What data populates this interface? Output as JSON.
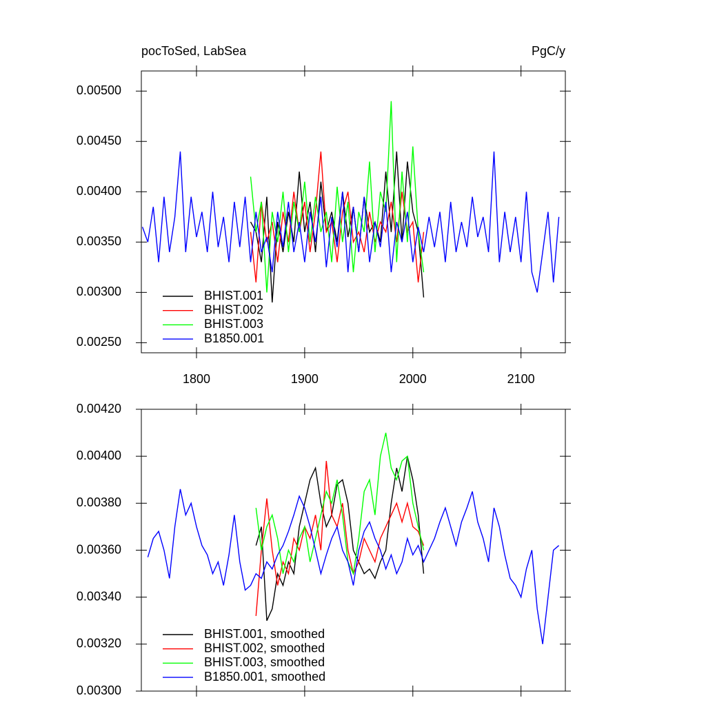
{
  "chart_data": [
    {
      "type": "line",
      "title": "pocToSed, LabSea",
      "units": "PgC/y",
      "xlim": [
        1749,
        2141
      ],
      "xticks": [
        1800,
        1900,
        2000,
        2100
      ],
      "xtick_labels": true,
      "ylim": [
        0.0024,
        0.0052
      ],
      "yticks": [
        {
          "value": 0.0025,
          "label": "0.00250"
        },
        {
          "value": 0.003,
          "label": "0.00300"
        },
        {
          "value": 0.0035,
          "label": "0.00350"
        },
        {
          "value": 0.004,
          "label": "0.00400"
        },
        {
          "value": 0.0045,
          "label": "0.00450"
        },
        {
          "value": 0.005,
          "label": "0.00500"
        }
      ],
      "legend": "lower left",
      "series": [
        {
          "name": "BHIST.001",
          "color": "#000000",
          "x": [
            1850,
            1855,
            1860,
            1865,
            1870,
            1875,
            1880,
            1885,
            1890,
            1895,
            1900,
            1905,
            1910,
            1915,
            1920,
            1925,
            1930,
            1935,
            1940,
            1945,
            1950,
            1955,
            1960,
            1965,
            1970,
            1975,
            1980,
            1985,
            1990,
            1995,
            2000,
            2005,
            2010
          ],
          "values": [
            0.0037,
            0.0036,
            0.0033,
            0.00395,
            0.0029,
            0.0037,
            0.0034,
            0.0038,
            0.0035,
            0.0042,
            0.0036,
            0.0039,
            0.0034,
            0.0041,
            0.0036,
            0.0038,
            0.0035,
            0.004,
            0.00355,
            0.00385,
            0.0034,
            0.00395,
            0.0036,
            0.0037,
            0.0035,
            0.0042,
            0.0036,
            0.0044,
            0.0035,
            0.0043,
            0.0038,
            0.0036,
            0.00295
          ]
        },
        {
          "name": "BHIST.002",
          "color": "#ff0000",
          "x": [
            1850,
            1855,
            1860,
            1865,
            1870,
            1875,
            1880,
            1885,
            1890,
            1895,
            1900,
            1905,
            1910,
            1915,
            1920,
            1925,
            1930,
            1935,
            1940,
            1945,
            1950,
            1955,
            1960,
            1965,
            1970,
            1975,
            1980,
            1985,
            1990,
            1995,
            2000,
            2005,
            2010
          ],
          "values": [
            0.0036,
            0.0031,
            0.0039,
            0.0035,
            0.0037,
            0.0033,
            0.0038,
            0.0035,
            0.004,
            0.0036,
            0.0039,
            0.0034,
            0.0038,
            0.0044,
            0.0036,
            0.0037,
            0.0033,
            0.0038,
            0.004,
            0.0035,
            0.0036,
            0.0034,
            0.0038,
            0.0035,
            0.0037,
            0.0036,
            0.0039,
            0.0035,
            0.004,
            0.0036,
            0.0037,
            0.0031,
            0.0036
          ]
        },
        {
          "name": "BHIST.003",
          "color": "#00ff00",
          "x": [
            1850,
            1855,
            1860,
            1865,
            1870,
            1875,
            1880,
            1885,
            1890,
            1895,
            1900,
            1905,
            1910,
            1915,
            1920,
            1925,
            1930,
            1935,
            1940,
            1945,
            1950,
            1955,
            1960,
            1965,
            1970,
            1975,
            1980,
            1985,
            1990,
            1995,
            2000,
            2005,
            2010
          ],
          "values": [
            0.00415,
            0.0036,
            0.0039,
            0.003,
            0.0038,
            0.0035,
            0.004,
            0.0034,
            0.0039,
            0.0036,
            0.0041,
            0.0035,
            0.00395,
            0.0036,
            0.0038,
            0.0033,
            0.00405,
            0.0035,
            0.0039,
            0.0032,
            0.0038,
            0.0036,
            0.0043,
            0.0034,
            0.004,
            0.0038,
            0.0049,
            0.0033,
            0.0042,
            0.0035,
            0.00445,
            0.0036,
            0.0032
          ]
        },
        {
          "name": "B1850.001",
          "color": "#0000ff",
          "x": [
            1750,
            1755,
            1760,
            1765,
            1770,
            1775,
            1780,
            1785,
            1790,
            1795,
            1800,
            1805,
            1810,
            1815,
            1820,
            1825,
            1830,
            1835,
            1840,
            1845,
            1850,
            1855,
            1860,
            1865,
            1870,
            1875,
            1880,
            1885,
            1890,
            1895,
            1900,
            1905,
            1910,
            1915,
            1920,
            1925,
            1930,
            1935,
            1940,
            1945,
            1950,
            1955,
            1960,
            1965,
            1970,
            1975,
            1980,
            1985,
            1990,
            1995,
            2000,
            2005,
            2010,
            2015,
            2020,
            2025,
            2030,
            2035,
            2040,
            2045,
            2050,
            2055,
            2060,
            2065,
            2070,
            2075,
            2080,
            2085,
            2090,
            2095,
            2100,
            2105,
            2110,
            2115,
            2120,
            2125,
            2130,
            2135
          ],
          "values": [
            0.00365,
            0.0035,
            0.00385,
            0.0033,
            0.00395,
            0.0034,
            0.00375,
            0.0044,
            0.0034,
            0.00395,
            0.00355,
            0.0038,
            0.0034,
            0.004,
            0.00345,
            0.00375,
            0.0033,
            0.0039,
            0.00345,
            0.00395,
            0.0033,
            0.0038,
            0.0034,
            0.00355,
            0.0032,
            0.0038,
            0.00345,
            0.0039,
            0.0034,
            0.0037,
            0.0033,
            0.0038,
            0.0035,
            0.00395,
            0.00325,
            0.00375,
            0.00345,
            0.004,
            0.0032,
            0.00385,
            0.0034,
            0.00395,
            0.0033,
            0.0037,
            0.00345,
            0.0039,
            0.0032,
            0.0037,
            0.0035,
            0.0038,
            0.0033,
            0.00365,
            0.0034,
            0.00375,
            0.00345,
            0.0038,
            0.0033,
            0.0039,
            0.0034,
            0.0037,
            0.00345,
            0.00395,
            0.00355,
            0.00375,
            0.0034,
            0.0044,
            0.0033,
            0.0038,
            0.0034,
            0.00375,
            0.0033,
            0.004,
            0.0032,
            0.003,
            0.0034,
            0.0038,
            0.0031,
            0.00375
          ]
        }
      ]
    },
    {
      "type": "line",
      "xlim": [
        1749,
        2141
      ],
      "xticks": [
        1800,
        1900,
        2000,
        2100
      ],
      "xtick_labels": false,
      "ylim": [
        0.003,
        0.0042
      ],
      "yticks": [
        {
          "value": 0.003,
          "label": "0.00300"
        },
        {
          "value": 0.0032,
          "label": "0.00320"
        },
        {
          "value": 0.0034,
          "label": "0.00340"
        },
        {
          "value": 0.0036,
          "label": "0.00360"
        },
        {
          "value": 0.0038,
          "label": "0.00380"
        },
        {
          "value": 0.004,
          "label": "0.00400"
        },
        {
          "value": 0.0042,
          "label": "0.00420"
        }
      ],
      "legend": "lower left",
      "series": [
        {
          "name": "BHIST.001, smoothed",
          "color": "#000000",
          "x": [
            1855,
            1860,
            1865,
            1870,
            1875,
            1880,
            1885,
            1890,
            1895,
            1900,
            1905,
            1910,
            1915,
            1920,
            1925,
            1930,
            1935,
            1940,
            1945,
            1950,
            1955,
            1960,
            1965,
            1970,
            1975,
            1980,
            1985,
            1990,
            1995,
            2000,
            2005,
            2010
          ],
          "values": [
            0.00362,
            0.0037,
            0.0033,
            0.00335,
            0.0035,
            0.00345,
            0.00355,
            0.0035,
            0.0037,
            0.0038,
            0.0039,
            0.00395,
            0.0038,
            0.0037,
            0.00375,
            0.00388,
            0.0039,
            0.0038,
            0.0036,
            0.00355,
            0.0035,
            0.00352,
            0.00348,
            0.00355,
            0.0036,
            0.0038,
            0.00395,
            0.00385,
            0.004,
            0.0039,
            0.00375,
            0.0035
          ]
        },
        {
          "name": "BHIST.002, smoothed",
          "color": "#ff0000",
          "x": [
            1855,
            1860,
            1865,
            1870,
            1875,
            1880,
            1885,
            1890,
            1895,
            1900,
            1905,
            1910,
            1915,
            1920,
            1925,
            1930,
            1935,
            1940,
            1945,
            1950,
            1955,
            1960,
            1965,
            1970,
            1975,
            1980,
            1985,
            1990,
            1995,
            2000,
            2005,
            2010
          ],
          "values": [
            0.00332,
            0.0036,
            0.00382,
            0.0036,
            0.00345,
            0.00355,
            0.0035,
            0.00365,
            0.0036,
            0.0037,
            0.00365,
            0.00375,
            0.0036,
            0.00398,
            0.00375,
            0.0037,
            0.0038,
            0.0036,
            0.0035,
            0.00355,
            0.00365,
            0.0036,
            0.00355,
            0.00365,
            0.0037,
            0.00375,
            0.0038,
            0.00372,
            0.0038,
            0.0037,
            0.00368,
            0.00362
          ]
        },
        {
          "name": "BHIST.003, smoothed",
          "color": "#00ff00",
          "x": [
            1855,
            1860,
            1865,
            1870,
            1875,
            1880,
            1885,
            1890,
            1895,
            1900,
            1905,
            1910,
            1915,
            1920,
            1925,
            1930,
            1935,
            1940,
            1945,
            1950,
            1955,
            1960,
            1965,
            1970,
            1975,
            1980,
            1985,
            1990,
            1995,
            2000,
            2005,
            2010
          ],
          "values": [
            0.00378,
            0.0036,
            0.0037,
            0.00375,
            0.00365,
            0.0035,
            0.0036,
            0.00355,
            0.00365,
            0.0037,
            0.00355,
            0.00365,
            0.00375,
            0.00385,
            0.0038,
            0.0039,
            0.00375,
            0.00355,
            0.0035,
            0.00365,
            0.00385,
            0.0039,
            0.00375,
            0.004,
            0.0041,
            0.00395,
            0.0039,
            0.00398,
            0.004,
            0.0038,
            0.0037,
            0.0036
          ]
        },
        {
          "name": "B1850.001, smoothed",
          "color": "#0000ff",
          "x": [
            1755,
            1760,
            1765,
            1770,
            1775,
            1780,
            1785,
            1790,
            1795,
            1800,
            1805,
            1810,
            1815,
            1820,
            1825,
            1830,
            1835,
            1840,
            1845,
            1850,
            1855,
            1860,
            1865,
            1870,
            1875,
            1880,
            1885,
            1890,
            1895,
            1900,
            1905,
            1910,
            1915,
            1920,
            1925,
            1930,
            1935,
            1940,
            1945,
            1950,
            1955,
            1960,
            1965,
            1970,
            1975,
            1980,
            1985,
            1990,
            1995,
            2000,
            2005,
            2010,
            2015,
            2020,
            2025,
            2030,
            2035,
            2040,
            2045,
            2050,
            2055,
            2060,
            2065,
            2070,
            2075,
            2080,
            2085,
            2090,
            2095,
            2100,
            2105,
            2110,
            2115,
            2120,
            2125,
            2130,
            2135
          ],
          "values": [
            0.00357,
            0.00365,
            0.00368,
            0.0036,
            0.00348,
            0.0037,
            0.00386,
            0.00375,
            0.0038,
            0.0037,
            0.00362,
            0.00358,
            0.0035,
            0.00355,
            0.00345,
            0.00358,
            0.00375,
            0.00355,
            0.00343,
            0.00345,
            0.0035,
            0.00348,
            0.00355,
            0.00352,
            0.00358,
            0.00362,
            0.00368,
            0.00375,
            0.00383,
            0.00378,
            0.0037,
            0.0036,
            0.0035,
            0.00358,
            0.00365,
            0.0037,
            0.0036,
            0.00355,
            0.00345,
            0.0036,
            0.00368,
            0.00372,
            0.00365,
            0.0036,
            0.00352,
            0.00358,
            0.0035,
            0.00355,
            0.00365,
            0.00358,
            0.00362,
            0.00355,
            0.0036,
            0.00365,
            0.00372,
            0.00378,
            0.0037,
            0.00362,
            0.00372,
            0.00378,
            0.00385,
            0.00372,
            0.00365,
            0.00355,
            0.00378,
            0.0037,
            0.00358,
            0.00348,
            0.00345,
            0.0034,
            0.00352,
            0.0036,
            0.00335,
            0.0032,
            0.0034,
            0.0036,
            0.00362
          ]
        }
      ]
    }
  ]
}
